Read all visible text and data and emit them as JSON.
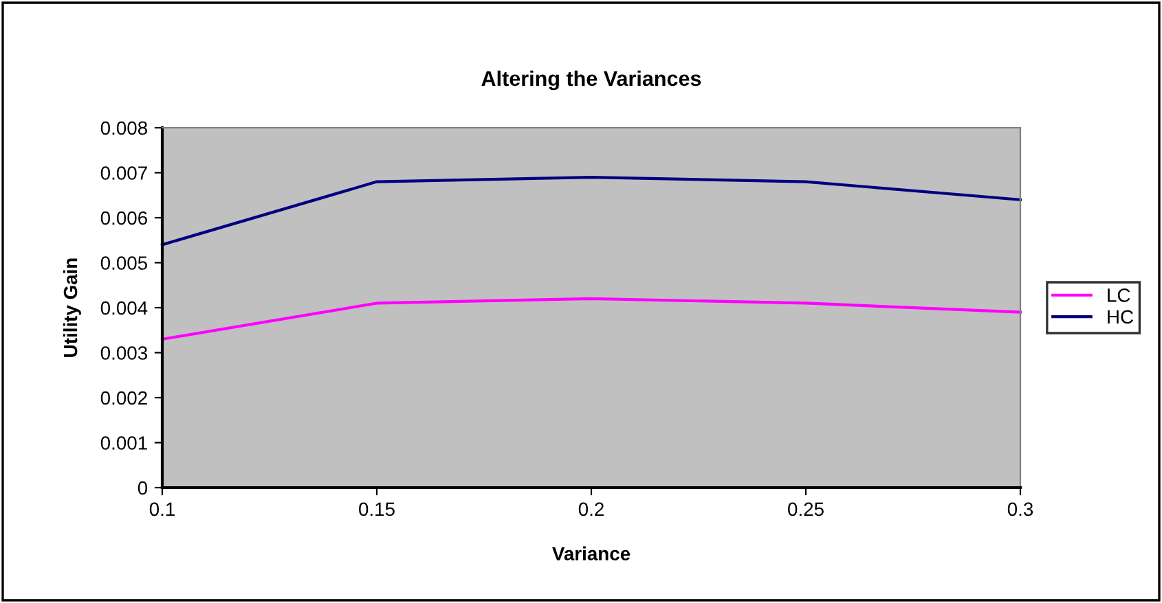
{
  "chart_data": {
    "type": "line",
    "title": "Altering the Variances",
    "xlabel": "Variance",
    "ylabel": "Utility Gain",
    "x": [
      0.1,
      0.15,
      0.2,
      0.25,
      0.3
    ],
    "series": [
      {
        "name": "LC",
        "color": "#ff00ff",
        "values": [
          0.0033,
          0.0041,
          0.0042,
          0.0041,
          0.0039
        ]
      },
      {
        "name": "HC",
        "color": "#000080",
        "values": [
          0.0054,
          0.0068,
          0.0069,
          0.0068,
          0.0064
        ]
      }
    ],
    "xlim": [
      0.1,
      0.3
    ],
    "xticks": [
      0.1,
      0.15,
      0.2,
      0.25,
      0.3
    ],
    "ylim": [
      0,
      0.008
    ],
    "yticks": [
      0,
      0.001,
      0.002,
      0.003,
      0.004,
      0.005,
      0.006,
      0.007,
      0.008
    ],
    "grid": false,
    "legend": "right",
    "marker": "none",
    "line_style": "solid"
  }
}
